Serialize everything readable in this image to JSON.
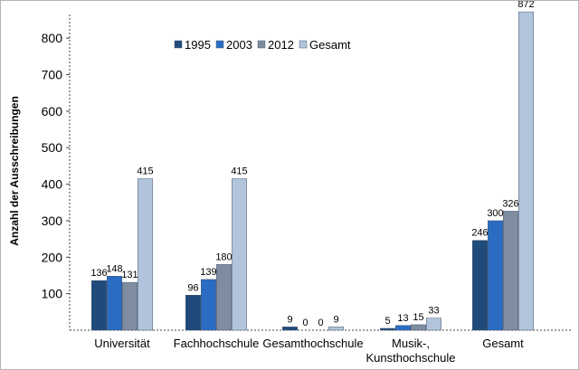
{
  "chart_data": {
    "type": "bar",
    "ylabel": "Anzahl der Ausschreibungen",
    "xlabel": "",
    "ylim": [
      0,
      872
    ],
    "yticks": [
      100,
      200,
      300,
      400,
      500,
      600,
      700,
      800
    ],
    "categories": [
      "Universität",
      "Fachhochschule",
      "Gesamthochschule",
      "Musik-,\nKunsthochschule",
      "Gesamt"
    ],
    "series": [
      {
        "name": "1995",
        "color": "#1f4a7a",
        "values": [
          136,
          96,
          9,
          5,
          246
        ]
      },
      {
        "name": "2003",
        "color": "#2a6cc4",
        "values": [
          148,
          139,
          0,
          13,
          300
        ]
      },
      {
        "name": "2012",
        "color": "#7f8da1",
        "values": [
          131,
          180,
          0,
          15,
          326
        ]
      },
      {
        "name": "Gesamt",
        "color": "#b2c4dc",
        "values": [
          415,
          415,
          9,
          33,
          872
        ]
      }
    ],
    "legend_position": "top-center",
    "grid": false
  }
}
